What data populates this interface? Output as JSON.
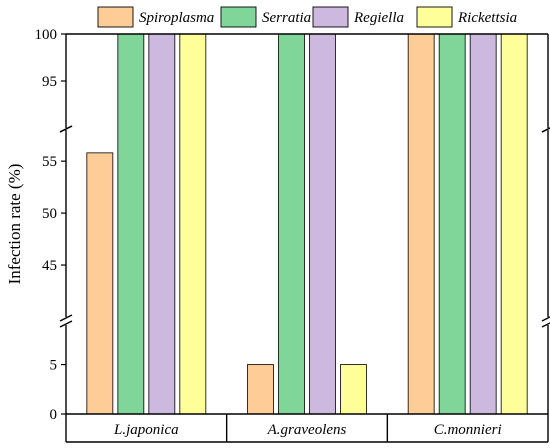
{
  "chart_data": {
    "type": "bar",
    "ylabel": "Infection rate (%)",
    "xlabel": "",
    "categories": [
      "L.japonica",
      "A.graveolens",
      "C.monnieri"
    ],
    "series": [
      {
        "name": "Spiroplasma",
        "color": "#FDCC97",
        "values": [
          55.8,
          5,
          100
        ]
      },
      {
        "name": "Serratia",
        "color": "#7FD698",
        "values": [
          100,
          100,
          100
        ]
      },
      {
        "name": "Regiella",
        "color": "#CDB8DF",
        "values": [
          100,
          100,
          100
        ]
      },
      {
        "name": "Rickettsia",
        "color": "#FFFF99",
        "values": [
          100,
          5,
          100
        ]
      }
    ],
    "y_axis": {
      "broken": true,
      "segments": [
        {
          "range": [
            0,
            9
          ],
          "ticks": [
            0,
            5
          ]
        },
        {
          "range": [
            40,
            58
          ],
          "ticks": [
            45,
            50,
            55
          ]
        },
        {
          "range": [
            90,
            100
          ],
          "ticks": [
            95,
            100
          ]
        }
      ]
    },
    "legend": {
      "position": "top"
    },
    "grid": false
  }
}
